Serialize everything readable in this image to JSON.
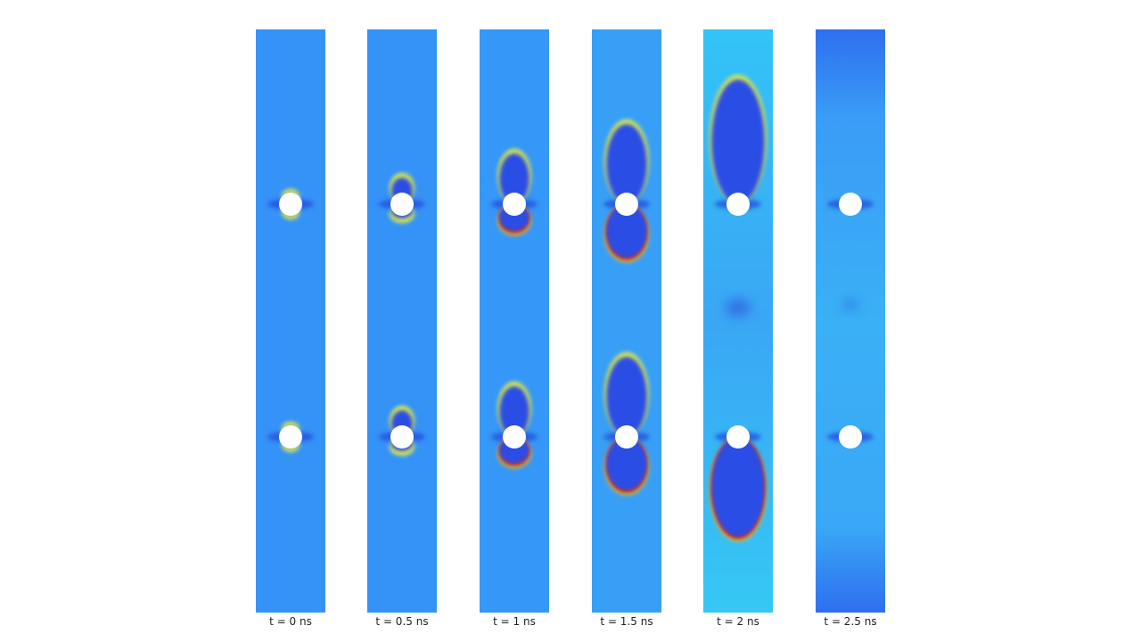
{
  "panels": [
    {
      "label": "t = 0 ns"
    },
    {
      "label": "t = 0.5 ns"
    },
    {
      "label": "t = 1 ns"
    },
    {
      "label": "t = 1.5 ns"
    },
    {
      "label": "t = 2 ns"
    },
    {
      "label": "t = 2.5 ns"
    }
  ]
}
